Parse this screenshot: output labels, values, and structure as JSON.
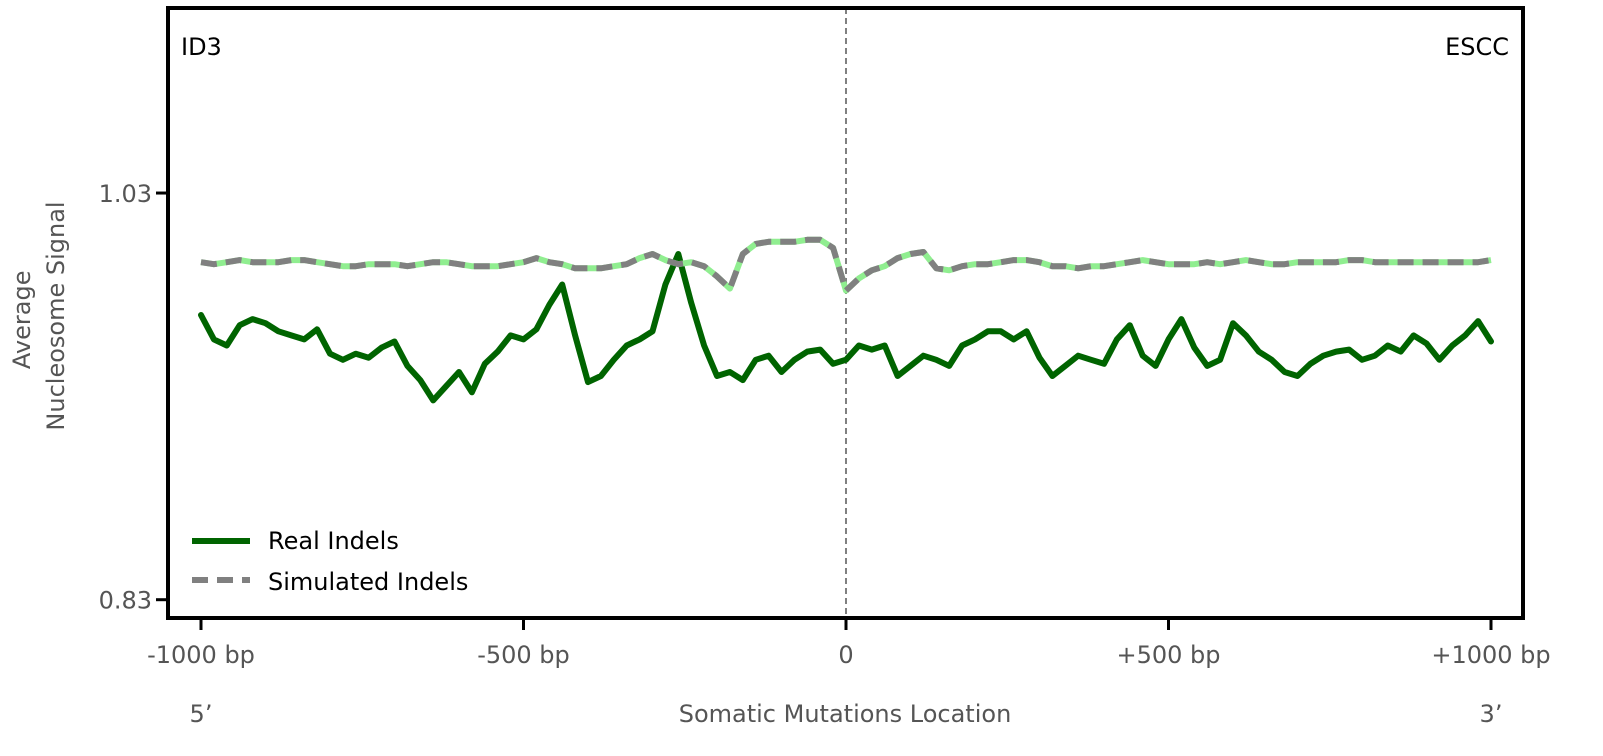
{
  "chart_data": {
    "type": "line",
    "corner_left": "ID3",
    "corner_right": "ESCC",
    "xlabel": "Somatic Mutations Location",
    "ylabel_lines": [
      "Average",
      "Nucleosome Signal"
    ],
    "end_left": "5’",
    "end_right": "3’",
    "xlim": [
      -1000,
      1000
    ],
    "ylim": [
      0.821,
      1.121
    ],
    "x_ticks": [
      {
        "value": -1000,
        "label": "-1000 bp"
      },
      {
        "value": -500,
        "label": "-500 bp"
      },
      {
        "value": 0,
        "label": "0"
      },
      {
        "value": 500,
        "label": "+500 bp"
      },
      {
        "value": 1000,
        "label": "+1000 bp"
      }
    ],
    "y_ticks": [
      {
        "value": 1.03,
        "label": "1.03"
      },
      {
        "value": 0.83,
        "label": "0.83"
      }
    ],
    "grid": false,
    "legend_position": "lower-left",
    "reference_line_x": 0,
    "series": [
      {
        "name": "Real Indels",
        "style": "solid",
        "color": "#006400",
        "x": [
          -1000,
          -980,
          -960,
          -940,
          -920,
          -900,
          -880,
          -860,
          -840,
          -820,
          -800,
          -780,
          -760,
          -740,
          -720,
          -700,
          -680,
          -660,
          -640,
          -620,
          -600,
          -580,
          -560,
          -540,
          -520,
          -500,
          -480,
          -460,
          -440,
          -420,
          -400,
          -380,
          -360,
          -340,
          -320,
          -300,
          -280,
          -260,
          -240,
          -220,
          -200,
          -180,
          -160,
          -140,
          -120,
          -100,
          -80,
          -60,
          -40,
          -20,
          0,
          20,
          40,
          60,
          80,
          100,
          120,
          140,
          160,
          180,
          200,
          220,
          240,
          260,
          280,
          300,
          320,
          340,
          360,
          380,
          400,
          420,
          440,
          460,
          480,
          500,
          520,
          540,
          560,
          580,
          600,
          620,
          640,
          660,
          680,
          700,
          720,
          740,
          760,
          780,
          800,
          820,
          840,
          860,
          880,
          900,
          920,
          940,
          960,
          980,
          1000
        ],
        "values": [
          0.97,
          0.958,
          0.955,
          0.965,
          0.968,
          0.966,
          0.962,
          0.96,
          0.958,
          0.963,
          0.951,
          0.948,
          0.951,
          0.949,
          0.954,
          0.957,
          0.945,
          0.938,
          0.928,
          0.935,
          0.942,
          0.932,
          0.946,
          0.952,
          0.96,
          0.958,
          0.963,
          0.975,
          0.985,
          0.96,
          0.937,
          0.94,
          0.948,
          0.955,
          0.958,
          0.962,
          0.985,
          1.0,
          0.976,
          0.955,
          0.94,
          0.942,
          0.938,
          0.948,
          0.95,
          0.942,
          0.948,
          0.952,
          0.953,
          0.946,
          0.948,
          0.955,
          0.953,
          0.955,
          0.94,
          0.945,
          0.95,
          0.948,
          0.945,
          0.955,
          0.958,
          0.962,
          0.962,
          0.958,
          0.962,
          0.949,
          0.94,
          0.945,
          0.95,
          0.948,
          0.946,
          0.958,
          0.965,
          0.95,
          0.945,
          0.958,
          0.968,
          0.954,
          0.945,
          0.948,
          0.966,
          0.96,
          0.952,
          0.948,
          0.942,
          0.94,
          0.946,
          0.95,
          0.952,
          0.953,
          0.948,
          0.95,
          0.955,
          0.952,
          0.96,
          0.956,
          0.948,
          0.955,
          0.96,
          0.967,
          0.957
        ]
      },
      {
        "name": "Simulated Indels",
        "style": "dashed",
        "color": "#808080",
        "color_secondary": "#90ee90",
        "x": [
          -1000,
          -980,
          -960,
          -940,
          -920,
          -900,
          -880,
          -860,
          -840,
          -820,
          -800,
          -780,
          -760,
          -740,
          -720,
          -700,
          -680,
          -660,
          -640,
          -620,
          -600,
          -580,
          -560,
          -540,
          -520,
          -500,
          -480,
          -460,
          -440,
          -420,
          -400,
          -380,
          -360,
          -340,
          -320,
          -300,
          -280,
          -260,
          -240,
          -220,
          -200,
          -180,
          -160,
          -140,
          -120,
          -100,
          -80,
          -60,
          -40,
          -20,
          0,
          20,
          40,
          60,
          80,
          100,
          120,
          140,
          160,
          180,
          200,
          220,
          240,
          260,
          280,
          300,
          320,
          340,
          360,
          380,
          400,
          420,
          440,
          460,
          480,
          500,
          520,
          540,
          560,
          580,
          600,
          620,
          640,
          660,
          680,
          700,
          720,
          740,
          760,
          780,
          800,
          820,
          840,
          860,
          880,
          900,
          920,
          940,
          960,
          980,
          1000
        ],
        "values": [
          0.996,
          0.995,
          0.996,
          0.997,
          0.996,
          0.996,
          0.996,
          0.997,
          0.997,
          0.996,
          0.995,
          0.994,
          0.994,
          0.995,
          0.995,
          0.995,
          0.994,
          0.995,
          0.996,
          0.996,
          0.995,
          0.994,
          0.994,
          0.994,
          0.995,
          0.996,
          0.998,
          0.996,
          0.995,
          0.993,
          0.993,
          0.993,
          0.994,
          0.995,
          0.998,
          1.0,
          0.997,
          0.995,
          0.996,
          0.994,
          0.989,
          0.983,
          1.0,
          1.005,
          1.006,
          1.006,
          1.006,
          1.007,
          1.007,
          1.003,
          0.982,
          0.988,
          0.992,
          0.994,
          0.998,
          1.0,
          1.001,
          0.993,
          0.992,
          0.994,
          0.995,
          0.995,
          0.996,
          0.997,
          0.997,
          0.996,
          0.994,
          0.994,
          0.993,
          0.994,
          0.994,
          0.995,
          0.996,
          0.997,
          0.996,
          0.995,
          0.995,
          0.995,
          0.996,
          0.995,
          0.996,
          0.997,
          0.996,
          0.995,
          0.995,
          0.996,
          0.996,
          0.996,
          0.996,
          0.997,
          0.997,
          0.996,
          0.996,
          0.996,
          0.996,
          0.996,
          0.996,
          0.996,
          0.996,
          0.996,
          0.997
        ]
      }
    ]
  }
}
